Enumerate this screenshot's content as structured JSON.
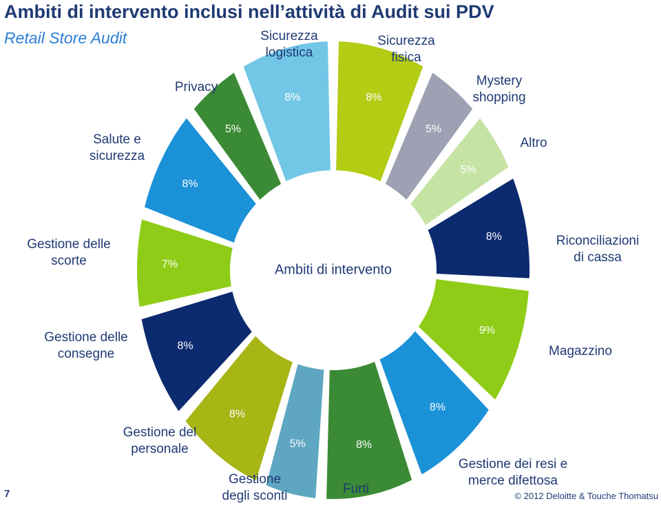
{
  "title": "Ambiti di intervento inclusi nell’attività di Audit sui PDV",
  "subtitle": "Retail Store Audit",
  "page_number": "7",
  "footer": "© 2012 Deloitte & Touche Thomatsu",
  "chart_data": {
    "type": "donut",
    "center_label": "Ambiti di intervento",
    "categories": [
      "Sicurezza\nfisica",
      "Mystery\nshopping",
      "Altro",
      "Riconciliazioni\ndi cassa",
      "Magazzino",
      "Gestione dei resi e\nmerce difettosa",
      "Furti",
      "Gestione\ndegli sconti",
      "Gestione del\npersonale",
      "Gestione delle\nconsegne",
      "Gestione delle\nscorte",
      "Salute e\nsicurezza",
      "Privacy",
      "Sicurezza\nlogistica"
    ],
    "values": [
      8,
      5,
      5,
      8,
      9,
      8,
      8,
      5,
      8,
      8,
      7,
      8,
      5,
      8
    ],
    "value_labels": [
      "8%",
      "5%",
      "5%",
      "8%",
      "9%",
      "8%",
      "8%",
      "5%",
      "8%",
      "8%",
      "7%",
      "8%",
      "5%",
      "8%"
    ],
    "colors": [
      "#b3cc14",
      "#9da1b3",
      "#c5e3a3",
      "#0b2a6f",
      "#8fcc17",
      "#1b91d8",
      "#3b8a35",
      "#5ea6c1",
      "#a7b515",
      "#0b2a6f",
      "#8fcc17",
      "#1b91d8",
      "#3b8a35",
      "#72c6e6"
    ]
  }
}
